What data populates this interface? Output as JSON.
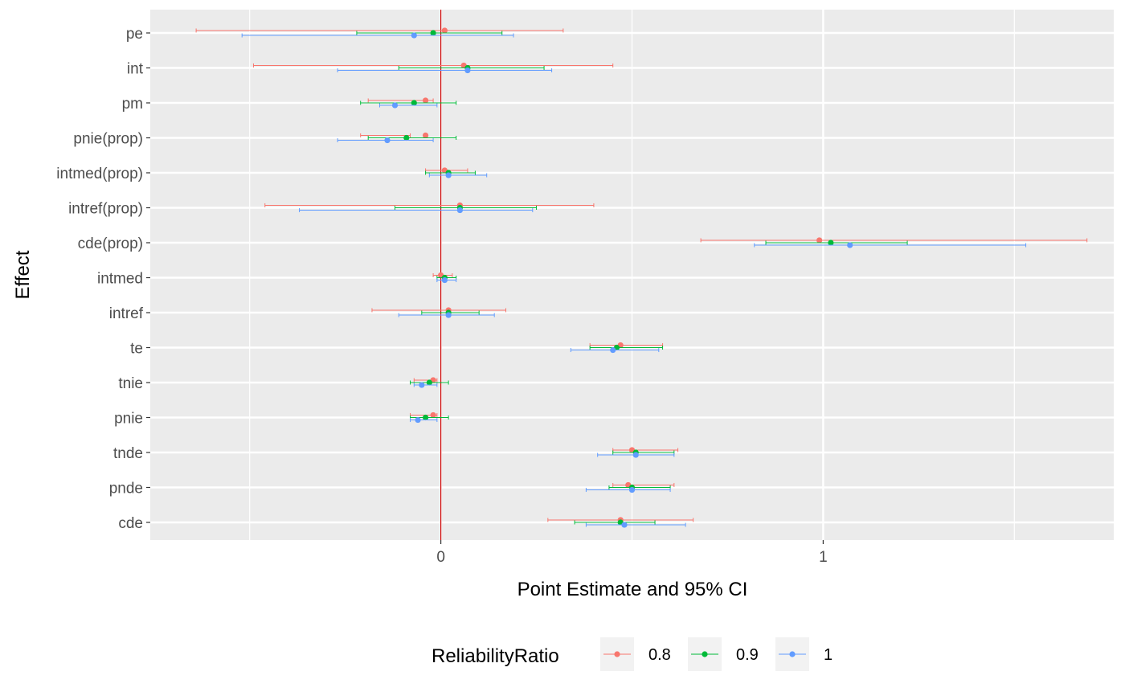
{
  "chart_data": {
    "type": "forest",
    "xlabel": "Point Estimate and 95% CI",
    "ylabel": "Effect",
    "xlim": [
      -0.76,
      1.76
    ],
    "x_ticks": [
      {
        "value": 0,
        "label": "0"
      },
      {
        "value": 1,
        "label": "1"
      }
    ],
    "x_minor_ticks": [
      -0.5,
      0.5,
      1.5
    ],
    "reference_line": {
      "x": 0,
      "color": "#CC0000"
    },
    "grid": true,
    "categories": [
      "pe",
      "int",
      "pm",
      "pnie(prop)",
      "intmed(prop)",
      "intref(prop)",
      "cde(prop)",
      "intmed",
      "intref",
      "te",
      "tnie",
      "pnie",
      "tnde",
      "pnde",
      "cde"
    ],
    "legend": {
      "title": "ReliabilityRatio",
      "position": "bottom"
    },
    "series": [
      {
        "name": "0.8",
        "color": "#F8766D",
        "offset": 0.07,
        "estimates": [
          0.01,
          0.06,
          -0.04,
          -0.04,
          0.01,
          0.05,
          0.99,
          0.0,
          0.02,
          0.47,
          -0.02,
          -0.02,
          0.5,
          0.49,
          0.47
        ],
        "lower": [
          -0.64,
          -0.49,
          -0.19,
          -0.21,
          -0.04,
          -0.46,
          0.68,
          -0.02,
          -0.18,
          0.39,
          -0.07,
          -0.08,
          0.45,
          0.45,
          0.28
        ],
        "upper": [
          0.32,
          0.45,
          -0.02,
          -0.08,
          0.07,
          0.4,
          1.69,
          0.03,
          0.17,
          0.58,
          -0.01,
          -0.01,
          0.62,
          0.61,
          0.66
        ]
      },
      {
        "name": "0.9",
        "color": "#00BA38",
        "offset": 0.0,
        "estimates": [
          -0.02,
          0.07,
          -0.07,
          -0.09,
          0.02,
          0.05,
          1.02,
          0.01,
          0.02,
          0.46,
          -0.03,
          -0.04,
          0.51,
          0.5,
          0.47
        ],
        "lower": [
          -0.22,
          -0.11,
          -0.21,
          -0.19,
          -0.04,
          -0.12,
          0.85,
          -0.01,
          -0.05,
          0.39,
          -0.08,
          -0.08,
          0.45,
          0.44,
          0.35
        ],
        "upper": [
          0.16,
          0.27,
          0.04,
          0.04,
          0.09,
          0.25,
          1.22,
          0.04,
          0.1,
          0.58,
          0.02,
          0.02,
          0.61,
          0.6,
          0.56
        ]
      },
      {
        "name": "1",
        "color": "#619CFF",
        "offset": -0.07,
        "estimates": [
          -0.07,
          0.07,
          -0.12,
          -0.14,
          0.02,
          0.05,
          1.07,
          0.01,
          0.02,
          0.45,
          -0.05,
          -0.06,
          0.51,
          0.5,
          0.48
        ],
        "lower": [
          -0.52,
          -0.27,
          -0.16,
          -0.27,
          -0.03,
          -0.37,
          0.82,
          -0.01,
          -0.11,
          0.34,
          -0.07,
          -0.08,
          0.41,
          0.38,
          0.38
        ],
        "upper": [
          0.19,
          0.29,
          -0.01,
          -0.02,
          0.12,
          0.24,
          1.53,
          0.04,
          0.14,
          0.57,
          -0.01,
          -0.01,
          0.61,
          0.6,
          0.64
        ]
      }
    ]
  }
}
